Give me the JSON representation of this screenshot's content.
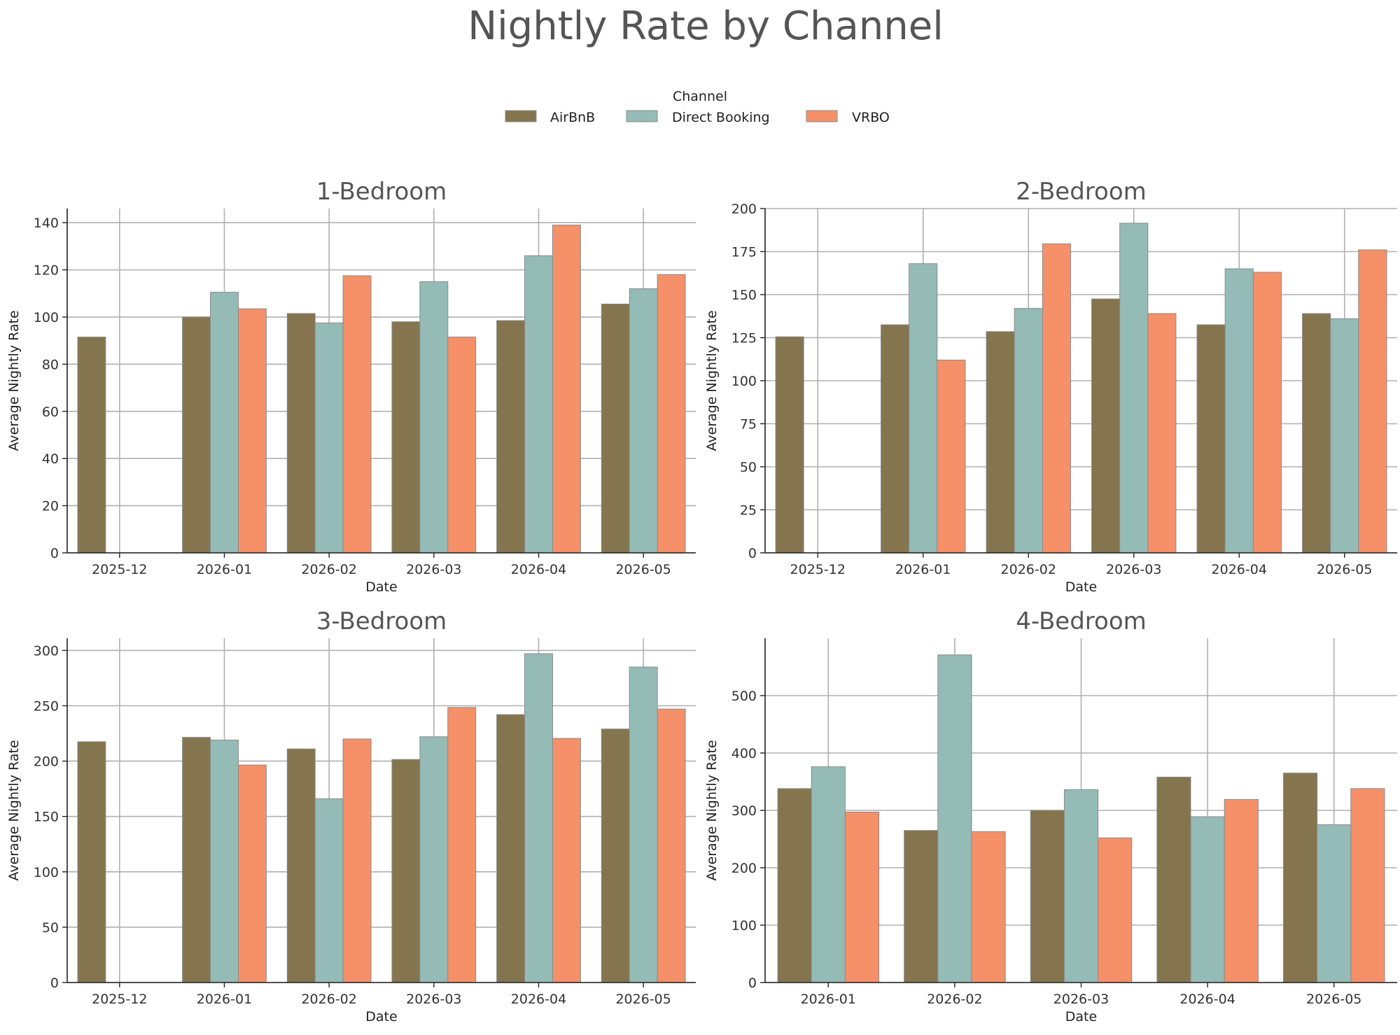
{
  "figure": {
    "title": "Nightly Rate by Channel"
  },
  "legend": {
    "title": "Channel",
    "entries": [
      {
        "label": "AirBnB",
        "color": "#84754e"
      },
      {
        "label": "Direct Booking",
        "color": "#95bbb6"
      },
      {
        "label": "VRBO",
        "color": "#f59068"
      }
    ]
  },
  "chart_data": [
    {
      "type": "bar",
      "title": "1-Bedroom",
      "xlabel": "Date",
      "ylabel": "Average Nightly Rate",
      "categories": [
        "2025-12",
        "2026-01",
        "2026-02",
        "2026-03",
        "2026-04",
        "2026-05"
      ],
      "ylim": [
        0,
        146
      ],
      "yticks": [
        0,
        20,
        40,
        60,
        80,
        100,
        120,
        140
      ],
      "grid": true,
      "series": [
        {
          "name": "AirBnB",
          "values": [
            91.5,
            100,
            101.5,
            98,
            98.5,
            105.5
          ]
        },
        {
          "name": "Direct Booking",
          "values": [
            null,
            110.5,
            97.5,
            115,
            126,
            112
          ]
        },
        {
          "name": "VRBO",
          "values": [
            null,
            103.5,
            117.5,
            91.5,
            139,
            118
          ]
        }
      ]
    },
    {
      "type": "bar",
      "title": "2-Bedroom",
      "xlabel": "Date",
      "ylabel": "Average Nightly Rate",
      "categories": [
        "2025-12",
        "2026-01",
        "2026-02",
        "2026-03",
        "2026-04",
        "2026-05"
      ],
      "ylim": [
        0,
        200
      ],
      "yticks": [
        0,
        25,
        50,
        75,
        100,
        125,
        150,
        175,
        200
      ],
      "grid": true,
      "series": [
        {
          "name": "AirBnB",
          "values": [
            125.5,
            132.5,
            128.5,
            147.5,
            132.5,
            139
          ]
        },
        {
          "name": "Direct Booking",
          "values": [
            null,
            168,
            142,
            191.5,
            165,
            136
          ]
        },
        {
          "name": "VRBO",
          "values": [
            null,
            112,
            179.5,
            139,
            163,
            176
          ]
        }
      ]
    },
    {
      "type": "bar",
      "title": "3-Bedroom",
      "xlabel": "Date",
      "ylabel": "Average Nightly Rate",
      "categories": [
        "2025-12",
        "2026-01",
        "2026-02",
        "2026-03",
        "2026-04",
        "2026-05"
      ],
      "ylim": [
        0,
        311
      ],
      "yticks": [
        0,
        50,
        100,
        150,
        200,
        250,
        300
      ],
      "grid": true,
      "series": [
        {
          "name": "AirBnB",
          "values": [
            217.5,
            221.5,
            211,
            201.5,
            242,
            229
          ]
        },
        {
          "name": "Direct Booking",
          "values": [
            null,
            219,
            166,
            222,
            297,
            285
          ]
        },
        {
          "name": "VRBO",
          "values": [
            null,
            196.5,
            220,
            248.5,
            220.5,
            247
          ]
        }
      ]
    },
    {
      "type": "bar",
      "title": "4-Bedroom",
      "xlabel": "Date",
      "ylabel": "Average Nightly Rate",
      "categories": [
        "2026-01",
        "2026-02",
        "2026-03",
        "2026-04",
        "2026-05"
      ],
      "ylim": [
        0,
        600
      ],
      "yticks": [
        0,
        100,
        200,
        300,
        400,
        500
      ],
      "grid": true,
      "series": [
        {
          "name": "AirBnB",
          "values": [
            338,
            265,
            300,
            358,
            365
          ]
        },
        {
          "name": "Direct Booking",
          "values": [
            376,
            571,
            336,
            289,
            275
          ]
        },
        {
          "name": "VRBO",
          "values": [
            297,
            263,
            252,
            319,
            338
          ]
        }
      ]
    }
  ]
}
